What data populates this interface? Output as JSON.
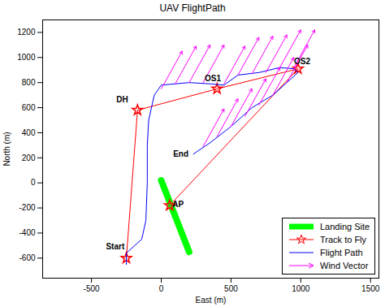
{
  "chart_data": {
    "type": "line",
    "title": "UAV FlightPath",
    "x_label": "East (m)",
    "y_label": "North (m)",
    "xlim": [
      -850,
      1560
    ],
    "ylim": [
      -760,
      1300
    ],
    "xticks": [
      -500,
      0,
      500,
      1000,
      1500
    ],
    "yticks": [
      -600,
      -400,
      -200,
      0,
      200,
      400,
      600,
      800,
      1000,
      1200
    ],
    "legend": "lower right",
    "series": [
      {
        "name": "Landing Site",
        "color": "#00ff00",
        "type": "line",
        "line_style": "thick",
        "x": [
          0,
          200
        ],
        "y": [
          20,
          -550
        ]
      },
      {
        "name": "Track to Fly",
        "color": "#ff0000",
        "type": "line",
        "marker": "star",
        "x": [
          -250,
          -170,
          400,
          980,
          60
        ],
        "y": [
          -600,
          580,
          750,
          910,
          -180
        ]
      },
      {
        "name": "Flight Path",
        "color": "#0000ff",
        "type": "line",
        "x": [
          -250,
          -250,
          -140,
          -110,
          -100,
          -100,
          -90,
          -50,
          0,
          200,
          350,
          450,
          550,
          700,
          850,
          950,
          980,
          900,
          800,
          650,
          500,
          350,
          230
        ],
        "y": [
          -650,
          -560,
          -450,
          -300,
          0,
          300,
          500,
          700,
          780,
          800,
          790,
          780,
          860,
          880,
          920,
          910,
          880,
          800,
          700,
          600,
          450,
          320,
          230
        ]
      },
      {
        "name": "Wind Vector",
        "color": "#ff00ff",
        "type": "vector",
        "x": [
          0,
          100,
          200,
          300,
          450,
          550,
          650,
          750,
          850,
          950,
          900,
          800,
          700,
          600,
          500,
          400,
          300
        ],
        "y": [
          750,
          790,
          800,
          800,
          790,
          860,
          870,
          880,
          920,
          920,
          800,
          700,
          620,
          530,
          450,
          370,
          290
        ],
        "u": [
          150,
          150,
          150,
          150,
          150,
          150,
          150,
          150,
          150,
          150,
          150,
          150,
          150,
          150,
          150,
          150,
          150
        ],
        "v": [
          300,
          300,
          300,
          300,
          300,
          300,
          300,
          300,
          300,
          300,
          300,
          300,
          300,
          300,
          300,
          300,
          300
        ]
      }
    ],
    "annotations": [
      {
        "text": "Start",
        "x": -330,
        "y": -510
      },
      {
        "text": "DH",
        "x": -280,
        "y": 660
      },
      {
        "text": "OS1",
        "x": 370,
        "y": 830
      },
      {
        "text": "OS2",
        "x": 1010,
        "y": 970
      },
      {
        "text": "End",
        "x": 140,
        "y": 230
      },
      {
        "text": "AP",
        "x": 120,
        "y": -170
      }
    ]
  }
}
